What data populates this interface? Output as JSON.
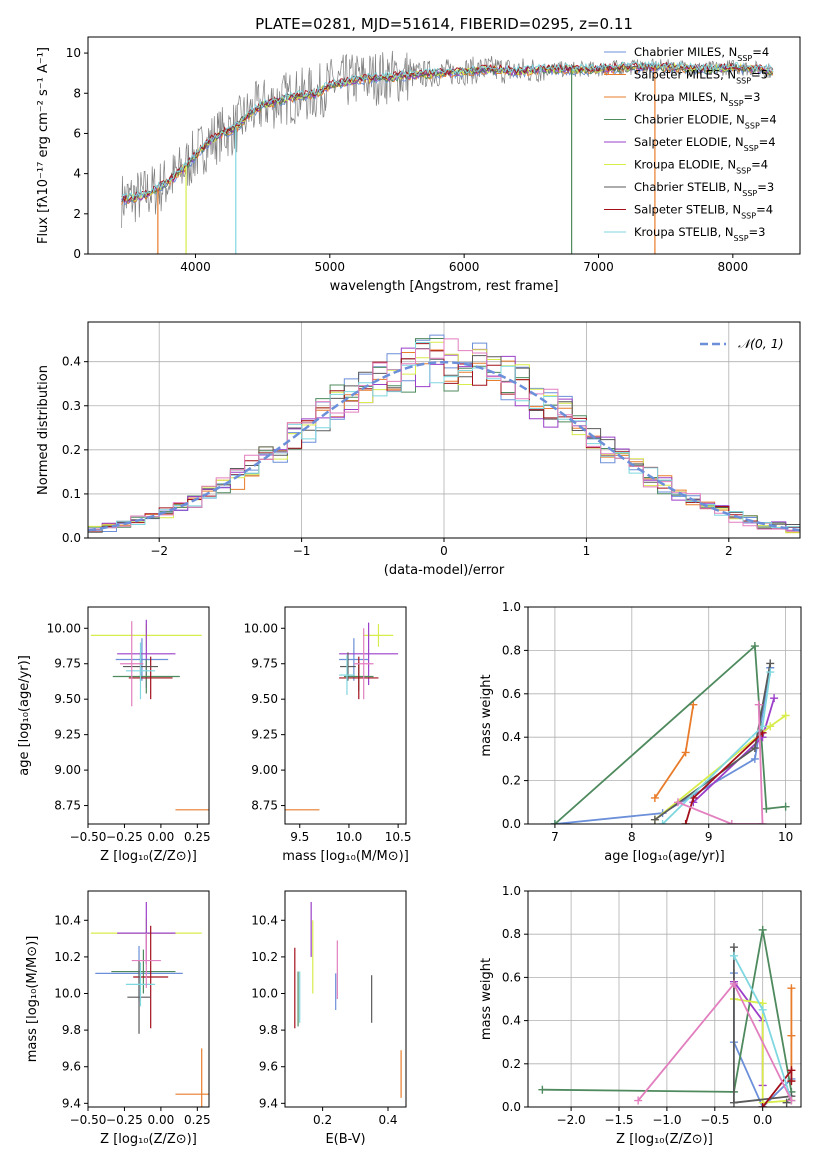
{
  "title": "PLATE=0281, MJD=51614, FIBERID=0295, z=0.11",
  "colors": {
    "Chabrier MILES": "#6b8fd9",
    "Salpeter MILES": "#e97c2a",
    "Kroupa MILES": "#e97c2a",
    "Chabrier ELODIE": "#4e8a5e",
    "Salpeter ELODIE": "#9b3fc9",
    "Kroupa ELODIE": "#d8ec4a",
    "Chabrier STELIB": "#5a5a5a",
    "Salpeter STELIB": "#a3101c",
    "Kroupa STELIB": "#7fd7e0",
    "pink": "#e27fbf",
    "normal": "#6b8fd9",
    "data": "#7f7f7f"
  },
  "chart_data": [
    {
      "id": "spectrum",
      "type": "line",
      "xlabel": "wavelength [Angstrom, rest frame]",
      "ylabel": "Flux [fλ10⁻¹⁷ erg cm⁻² s⁻¹ A⁻¹]",
      "xlim": [
        3200,
        8500
      ],
      "ylim": [
        0,
        10.8
      ],
      "xticks": [
        4000,
        5000,
        6000,
        7000,
        8000
      ],
      "yticks": [
        0,
        2,
        4,
        6,
        8,
        10
      ],
      "legend_placement": "top-right",
      "legend": [
        "Chabrier MILES, N_SSP=4",
        "Salpeter MILES, N_SSP=5",
        "Kroupa MILES, N_SSP=3",
        "Chabrier ELODIE, N_SSP=4",
        "Salpeter ELODIE, N_SSP=4",
        "Kroupa ELODIE, N_SSP=4",
        "Chabrier STELIB, N_SSP=3",
        "Salpeter STELIB, N_SSP=4",
        "Kroupa STELIB, N_SSP=3"
      ],
      "legend_parts": [
        {
          "main": "Chabrier MILES, N",
          "sub": "SSP",
          "tail": "=4"
        },
        {
          "main": "Salpeter MILES, N",
          "sub": "SSP",
          "tail": "=5"
        },
        {
          "main": "Kroupa MILES, N",
          "sub": "SSP",
          "tail": "=3"
        },
        {
          "main": "Chabrier ELODIE, N",
          "sub": "SSP",
          "tail": "=4"
        },
        {
          "main": "Salpeter ELODIE, N",
          "sub": "SSP",
          "tail": "=4"
        },
        {
          "main": "Kroupa ELODIE, N",
          "sub": "SSP",
          "tail": "=4"
        },
        {
          "main": "Chabrier STELIB, N",
          "sub": "SSP",
          "tail": "=3"
        },
        {
          "main": "Salpeter STELIB, N",
          "sub": "SSP",
          "tail": "=4"
        },
        {
          "main": "Kroupa STELIB, N",
          "sub": "SSP",
          "tail": "=3"
        }
      ],
      "model_curve": {
        "x": [
          3450,
          3600,
          3700,
          3800,
          3900,
          4000,
          4100,
          4200,
          4300,
          4400,
          4500,
          4700,
          4900,
          5000,
          5200,
          5400,
          5600,
          5800,
          6000,
          6200,
          6400,
          6600,
          6800,
          7000,
          7200,
          7400,
          7600,
          7800,
          8000,
          8200,
          8300
        ],
        "y": [
          2.7,
          2.9,
          3.2,
          3.6,
          4.2,
          4.9,
          5.6,
          6.0,
          6.3,
          7.0,
          7.4,
          7.8,
          8.0,
          8.4,
          8.7,
          8.8,
          8.9,
          9.0,
          9.1,
          9.2,
          9.1,
          9.2,
          9.2,
          9.2,
          9.3,
          9.3,
          9.3,
          9.2,
          9.3,
          9.2,
          9.1
        ]
      },
      "dips": [
        {
          "x": 3720,
          "y": 0
        },
        {
          "x": 3930,
          "y": 0
        },
        {
          "x": 4300,
          "y": 0
        },
        {
          "x": 6800,
          "y": 0
        },
        {
          "x": 7420,
          "y": 0
        }
      ]
    },
    {
      "id": "residuals",
      "type": "area",
      "xlabel": "(data-model)/error",
      "ylabel": "Normed distribution",
      "xlim": [
        -2.5,
        2.5
      ],
      "ylim": [
        0,
        0.49
      ],
      "xticks": [
        -2,
        -1,
        0,
        1,
        2
      ],
      "yticks": [
        0.0,
        0.1,
        0.2,
        0.3,
        0.4
      ],
      "grid": true,
      "legend_placement": "top-right",
      "legend_label": "𝒩(0, 1)",
      "normal": {
        "mu": 0,
        "sigma": 1
      },
      "hist_range": [
        -2.5,
        2.5
      ],
      "hist_bins": 50
    },
    {
      "id": "age_vs_Z",
      "type": "scatter",
      "xlabel": "Z [log₁₀(Z/Z⊙)]",
      "ylabel": "age  [log₁₀(age/yr)]",
      "xlim": [
        -0.5,
        0.33
      ],
      "ylim": [
        8.62,
        10.15
      ],
      "xticks": [
        -0.5,
        -0.25,
        0.0,
        0.25
      ],
      "yticks": [
        8.75,
        9.0,
        9.25,
        9.5,
        9.75,
        10.0
      ],
      "points": [
        {
          "series": "Chabrier MILES",
          "x": -0.13,
          "y": 9.78,
          "xerr": 0.18,
          "yerr": 0.15
        },
        {
          "series": "Salpeter MILES",
          "x": 0.28,
          "y": 8.72,
          "xerr": 0.18,
          "yerr": 0.0
        },
        {
          "series": "Kroupa ELODIE",
          "x": -0.1,
          "y": 9.95,
          "xerr": 0.38,
          "yerr": 0.08
        },
        {
          "series": "Salpeter ELODIE",
          "x": -0.1,
          "y": 9.82,
          "xerr": 0.2,
          "yerr": 0.24
        },
        {
          "series": "Chabrier ELODIE",
          "x": -0.1,
          "y": 9.66,
          "xerr": 0.23,
          "yerr": 0.12
        },
        {
          "series": "Salpeter STELIB",
          "x": -0.07,
          "y": 9.65,
          "xerr": 0.15,
          "yerr": 0.15
        },
        {
          "series": "Chabrier STELIB",
          "x": -0.14,
          "y": 9.73,
          "xerr": 0.12,
          "yerr": 0.1
        },
        {
          "series": "Kroupa STELIB",
          "x": -0.14,
          "y": 9.7,
          "xerr": 0.1,
          "yerr": 0.2
        },
        {
          "series": "pink",
          "x": -0.2,
          "y": 9.75,
          "xerr": 0.08,
          "yerr": 0.3
        }
      ]
    },
    {
      "id": "age_vs_mass",
      "type": "scatter",
      "xlabel": "mass [log₁₀(M/M⊙)]",
      "ylabel": "",
      "xlim": [
        9.35,
        10.58
      ],
      "ylim": [
        8.62,
        10.15
      ],
      "xticks": [
        9.5,
        10.0,
        10.5
      ],
      "yticks": [
        8.75,
        9.0,
        9.25,
        9.5,
        9.75,
        10.0
      ],
      "points": [
        {
          "series": "Chabrier MILES",
          "x": 10.05,
          "y": 9.78,
          "xerr": 0.15,
          "yerr": 0.15
        },
        {
          "series": "Salpeter MILES",
          "x": 9.45,
          "y": 8.72,
          "xerr": 0.25,
          "yerr": 0.0
        },
        {
          "series": "Kroupa ELODIE",
          "x": 10.3,
          "y": 9.95,
          "xerr": 0.15,
          "yerr": 0.08
        },
        {
          "series": "Salpeter ELODIE",
          "x": 10.2,
          "y": 9.82,
          "xerr": 0.3,
          "yerr": 0.22
        },
        {
          "series": "Chabrier ELODIE",
          "x": 10.1,
          "y": 9.66,
          "xerr": 0.15,
          "yerr": 0.1
        },
        {
          "series": "Salpeter STELIB",
          "x": 10.1,
          "y": 9.65,
          "xerr": 0.2,
          "yerr": 0.15
        },
        {
          "series": "Chabrier STELIB",
          "x": 9.99,
          "y": 9.73,
          "xerr": 0.08,
          "yerr": 0.1
        },
        {
          "series": "Kroupa STELIB",
          "x": 9.98,
          "y": 9.67,
          "xerr": 0.08,
          "yerr": 0.14
        },
        {
          "series": "pink",
          "x": 10.15,
          "y": 9.75,
          "xerr": 0.1,
          "yerr": 0.25
        }
      ]
    },
    {
      "id": "weight_vs_age",
      "type": "line",
      "xlabel": "age  [log₁₀(age/yr)]",
      "ylabel": "mass weight",
      "xlim": [
        6.65,
        10.2
      ],
      "ylim": [
        0,
        1.0
      ],
      "xticks": [
        7,
        8,
        9,
        10
      ],
      "yticks": [
        0.0,
        0.2,
        0.4,
        0.6,
        0.8,
        1.0
      ],
      "grid": true,
      "series": [
        {
          "name": "Chabrier MILES",
          "x": [
            7.0,
            8.4,
            9.6,
            9.8
          ],
          "y": [
            0.0,
            0.05,
            0.3,
            0.72
          ]
        },
        {
          "name": "Salpeter MILES",
          "x": [
            8.3,
            8.7,
            8.8
          ],
          "y": [
            0.12,
            0.33,
            0.55
          ]
        },
        {
          "name": "Chabrier ELODIE",
          "x": [
            7.0,
            9.6,
            9.75,
            10.0
          ],
          "y": [
            0.0,
            0.82,
            0.07,
            0.08
          ]
        },
        {
          "name": "Salpeter ELODIE",
          "x": [
            8.8,
            9.7,
            9.85
          ],
          "y": [
            0.1,
            0.4,
            0.58
          ]
        },
        {
          "name": "Kroupa ELODIE",
          "x": [
            8.3,
            9.8,
            10.0
          ],
          "y": [
            0.02,
            0.45,
            0.5
          ]
        },
        {
          "name": "Chabrier STELIB",
          "x": [
            8.3,
            9.6,
            9.8
          ],
          "y": [
            0.02,
            0.35,
            0.74
          ]
        },
        {
          "name": "Salpeter STELIB",
          "x": [
            8.7,
            8.8,
            9.7
          ],
          "y": [
            0.0,
            0.12,
            0.42
          ]
        },
        {
          "name": "Kroupa STELIB",
          "x": [
            8.4,
            9.7,
            9.8
          ],
          "y": [
            0.0,
            0.45,
            0.7
          ]
        },
        {
          "name": "pink",
          "x": [
            8.6,
            9.3,
            9.7,
            9.65
          ],
          "y": [
            0.1,
            0.0,
            0.0,
            0.55
          ]
        }
      ]
    },
    {
      "id": "mass_vs_Z",
      "type": "scatter",
      "xlabel": "Z [log₁₀(Z/Z⊙)]",
      "ylabel": "mass [log₁₀(M/M⊙)]",
      "xlim": [
        -0.5,
        0.33
      ],
      "ylim": [
        9.38,
        10.56
      ],
      "xticks": [
        -0.5,
        -0.25,
        0.0,
        0.25
      ],
      "yticks": [
        9.4,
        9.6,
        9.8,
        10.0,
        10.2,
        10.4
      ],
      "points": [
        {
          "series": "Chabrier MILES",
          "x": -0.15,
          "y": 10.11,
          "xerr": 0.3,
          "yerr": 0.15
        },
        {
          "series": "Salpeter MILES",
          "x": 0.28,
          "y": 9.45,
          "xerr": 0.18,
          "yerr": 0.25
        },
        {
          "series": "Kroupa ELODIE",
          "x": -0.1,
          "y": 10.33,
          "xerr": 0.38,
          "yerr": 0.08
        },
        {
          "series": "Salpeter ELODIE",
          "x": -0.1,
          "y": 10.33,
          "xerr": 0.2,
          "yerr": 0.17
        },
        {
          "series": "Chabrier ELODIE",
          "x": -0.12,
          "y": 10.12,
          "xerr": 0.22,
          "yerr": 0.12
        },
        {
          "series": "Salpeter STELIB",
          "x": -0.07,
          "y": 10.09,
          "xerr": 0.12,
          "yerr": 0.28
        },
        {
          "series": "Chabrier STELIB",
          "x": -0.15,
          "y": 9.98,
          "xerr": 0.08,
          "yerr": 0.2
        },
        {
          "series": "Kroupa STELIB",
          "x": -0.14,
          "y": 10.05,
          "xerr": 0.1,
          "yerr": 0.12
        },
        {
          "series": "pink",
          "x": -0.1,
          "y": 10.18,
          "xerr": 0.1,
          "yerr": 0.15
        }
      ]
    },
    {
      "id": "mass_vs_EBV",
      "type": "scatter",
      "xlabel": "E(B-V)",
      "ylabel": "",
      "xlim": [
        0.085,
        0.455
      ],
      "ylim": [
        9.38,
        10.56
      ],
      "xticks": [
        0.2,
        0.4
      ],
      "yticks": [
        9.4,
        9.6,
        9.8,
        10.0,
        10.2,
        10.4
      ],
      "points": [
        {
          "series": "Salpeter STELIB",
          "x": 0.115,
          "y": 10.03,
          "xerr": 0,
          "yerr": 0.22
        },
        {
          "series": "Chabrier ELODIE",
          "x": 0.125,
          "y": 9.97,
          "xerr": 0,
          "yerr": 0.15
        },
        {
          "series": "Kroupa STELIB",
          "x": 0.13,
          "y": 9.98,
          "xerr": 0,
          "yerr": 0.14
        },
        {
          "series": "Salpeter ELODIE",
          "x": 0.165,
          "y": 10.35,
          "xerr": 0,
          "yerr": 0.15
        },
        {
          "series": "Kroupa ELODIE",
          "x": 0.17,
          "y": 10.2,
          "xerr": 0,
          "yerr": 0.2
        },
        {
          "series": "Chabrier MILES",
          "x": 0.24,
          "y": 10.01,
          "xerr": 0,
          "yerr": 0.1
        },
        {
          "series": "pink",
          "x": 0.245,
          "y": 10.13,
          "xerr": 0,
          "yerr": 0.16
        },
        {
          "series": "Chabrier STELIB",
          "x": 0.35,
          "y": 9.97,
          "xerr": 0,
          "yerr": 0.13
        },
        {
          "series": "Salpeter MILES",
          "x": 0.44,
          "y": 9.56,
          "xerr": 0,
          "yerr": 0.13
        }
      ]
    },
    {
      "id": "weight_vs_Z",
      "type": "line",
      "xlabel": "Z [log₁₀(Z/Z⊙)]",
      "ylabel": "mass weight",
      "xlim": [
        -2.45,
        0.4
      ],
      "ylim": [
        0,
        1.0
      ],
      "xticks": [
        -2.0,
        -1.5,
        -1.0,
        -0.5,
        0.0
      ],
      "yticks": [
        0.0,
        0.2,
        0.4,
        0.6,
        0.8,
        1.0
      ],
      "grid": true,
      "series": [
        {
          "name": "Chabrier MILES",
          "x": [
            -0.3,
            -0.3,
            0.0,
            0.3
          ],
          "y": [
            0.62,
            0.3,
            0.0,
            0.13
          ]
        },
        {
          "name": "Salpeter MILES",
          "x": [
            0.3,
            0.3,
            0.3
          ],
          "y": [
            0.55,
            0.33,
            0.12
          ]
        },
        {
          "name": "Chabrier ELODIE",
          "x": [
            -2.3,
            -0.3,
            0.0,
            0.3
          ],
          "y": [
            0.08,
            0.07,
            0.82,
            0.07
          ]
        },
        {
          "name": "Salpeter ELODIE",
          "x": [
            -0.3,
            0.0,
            0.0
          ],
          "y": [
            0.58,
            0.4,
            0.1
          ]
        },
        {
          "name": "Kroupa ELODIE",
          "x": [
            -0.3,
            0.0,
            0.0,
            0.3
          ],
          "y": [
            0.5,
            0.48,
            0.02,
            0.03
          ]
        },
        {
          "name": "Chabrier STELIB",
          "x": [
            -0.3,
            -0.3,
            0.3,
            0.25
          ],
          "y": [
            0.74,
            0.02,
            0.05,
            0.02
          ]
        },
        {
          "name": "Salpeter STELIB",
          "x": [
            0.0,
            0.3,
            0.3
          ],
          "y": [
            0.0,
            0.17,
            0.12
          ]
        },
        {
          "name": "Kroupa STELIB",
          "x": [
            -0.3,
            0.0,
            0.3
          ],
          "y": [
            0.7,
            0.45,
            0.03
          ]
        },
        {
          "name": "pink",
          "x": [
            -1.3,
            -0.3,
            0.3
          ],
          "y": [
            0.03,
            0.57,
            0.03
          ]
        }
      ]
    }
  ]
}
